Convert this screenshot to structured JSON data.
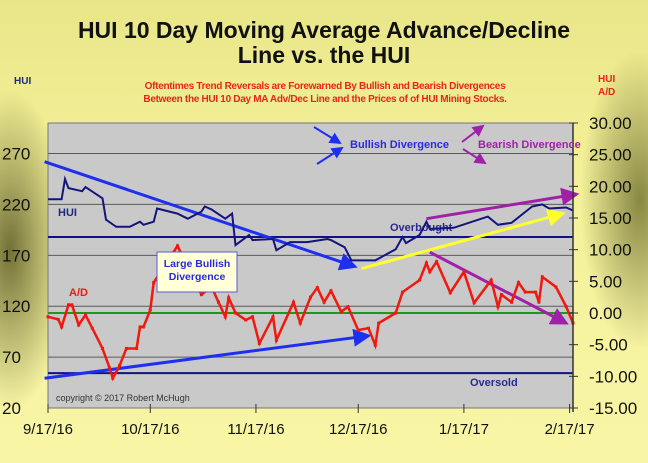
{
  "chart_data": {
    "type": "line",
    "title": "HUI 10 Day Moving Average Advance/Decline",
    "title_line2": "Line vs. the HUI",
    "subtitle": [
      "Oftentimes Trend Reversals are Forewarned By Bullish and Bearish Divergences",
      "Between the HUI 10 Day MA Adv/Dec Line and the Prices of of HUI Mining Stocks."
    ],
    "left_axis_label": "HUI",
    "right_axis_label": [
      "HUI",
      "A/D"
    ],
    "left_ylim": [
      20,
      300
    ],
    "left_ticks": [
      "270",
      "220",
      "170",
      "120",
      "70",
      "20"
    ],
    "left_tick_values": [
      270,
      220,
      170,
      120,
      70,
      20
    ],
    "right_ylim": [
      -15,
      30
    ],
    "right_ticks": [
      "30.00",
      "25.00",
      "20.00",
      "15.00",
      "10.00",
      "5.00",
      "0.00",
      "-5.00",
      "-10.00",
      "-15.00"
    ],
    "right_tick_values": [
      30,
      25,
      20,
      15,
      10,
      5,
      0,
      -5,
      -10,
      -15
    ],
    "xlim": [
      "2016-09-17",
      "2017-02-18"
    ],
    "x_ticks": [
      "9/17/16",
      "10/17/16",
      "11/17/16",
      "12/17/16",
      "1/17/17",
      "2/17/17"
    ],
    "x_tick_dates": [
      "2016-09-17",
      "2016-10-17",
      "2016-11-17",
      "2016-12-17",
      "2017-01-17",
      "2017-02-17"
    ],
    "grid": true,
    "colors": {
      "hui": "#14147a",
      "ad": "#f0180f",
      "zero": "#1a9a1a",
      "reference": "#10108a",
      "bullish": "#1f2ff0",
      "bearish": "#a020a8",
      "yellow": "#ffff30",
      "plot_bg": "#c9c9c9"
    },
    "series": [
      {
        "name": "HUI",
        "axis": "left",
        "label": "HUI",
        "points": [
          [
            "2016-09-17",
            225
          ],
          [
            "2016-09-21",
            225
          ],
          [
            "2016-09-22",
            245
          ],
          [
            "2016-09-23",
            236
          ],
          [
            "2016-09-27",
            233
          ],
          [
            "2016-09-28",
            237
          ],
          [
            "2016-10-03",
            226
          ],
          [
            "2016-10-04",
            205
          ],
          [
            "2016-10-07",
            198
          ],
          [
            "2016-10-11",
            198
          ],
          [
            "2016-10-14",
            203
          ],
          [
            "2016-10-15",
            200
          ],
          [
            "2016-10-18",
            203
          ],
          [
            "2016-10-19",
            216
          ],
          [
            "2016-10-25",
            211
          ],
          [
            "2016-10-28",
            206
          ],
          [
            "2016-11-01",
            213
          ],
          [
            "2016-11-02",
            218
          ],
          [
            "2016-11-04",
            215
          ],
          [
            "2016-11-08",
            206
          ],
          [
            "2016-11-10",
            211
          ],
          [
            "2016-11-11",
            180
          ],
          [
            "2016-11-15",
            190
          ],
          [
            "2016-11-16",
            185
          ],
          [
            "2016-11-22",
            186
          ],
          [
            "2016-11-23",
            175
          ],
          [
            "2016-11-27",
            183
          ],
          [
            "2016-12-02",
            183
          ],
          [
            "2016-12-08",
            186
          ],
          [
            "2016-12-09",
            185
          ],
          [
            "2016-12-13",
            178
          ],
          [
            "2016-12-15",
            165
          ],
          [
            "2016-12-22",
            165
          ],
          [
            "2016-12-28",
            176
          ],
          [
            "2016-12-30",
            188
          ],
          [
            "2016-12-31",
            182
          ],
          [
            "2017-01-04",
            190
          ],
          [
            "2017-01-06",
            203
          ],
          [
            "2017-01-07",
            196
          ],
          [
            "2017-01-14",
            197
          ],
          [
            "2017-01-24",
            208
          ],
          [
            "2017-01-27",
            200
          ],
          [
            "2017-01-31",
            202
          ],
          [
            "2017-02-06",
            218
          ],
          [
            "2017-02-09",
            220
          ],
          [
            "2017-02-11",
            216
          ],
          [
            "2017-02-16",
            217
          ],
          [
            "2017-02-18",
            214
          ]
        ]
      },
      {
        "name": "A/D",
        "axis": "right",
        "label": "A/D",
        "points": [
          [
            "2016-09-17",
            -0.6
          ],
          [
            "2016-09-20",
            -1
          ],
          [
            "2016-09-21",
            -2.2
          ],
          [
            "2016-09-23",
            1.3
          ],
          [
            "2016-09-24",
            1.3
          ],
          [
            "2016-09-26",
            -1.9
          ],
          [
            "2016-09-28",
            -0.3
          ],
          [
            "2016-09-30",
            -2.4
          ],
          [
            "2016-10-03",
            -5.6
          ],
          [
            "2016-10-05",
            -8.6
          ],
          [
            "2016-10-06",
            -10.3
          ],
          [
            "2016-10-08",
            -8.3
          ],
          [
            "2016-10-10",
            -5.6
          ],
          [
            "2016-10-13",
            -5.6
          ],
          [
            "2016-10-14",
            -2.2
          ],
          [
            "2016-10-15",
            -2.2
          ],
          [
            "2016-10-17",
            0.5
          ],
          [
            "2016-10-18",
            4.8
          ],
          [
            "2016-10-25",
            10.6
          ],
          [
            "2016-11-01",
            2.9
          ],
          [
            "2016-11-04",
            4.1
          ],
          [
            "2016-11-06",
            1.7
          ],
          [
            "2016-11-08",
            -0.6
          ],
          [
            "2016-11-09",
            2.4
          ],
          [
            "2016-11-11",
            0
          ],
          [
            "2016-11-14",
            -1.1
          ],
          [
            "2016-11-16",
            -0.6
          ],
          [
            "2016-11-18",
            -4.8
          ],
          [
            "2016-11-22",
            -0.6
          ],
          [
            "2016-11-23",
            -4.3
          ],
          [
            "2016-11-28",
            1.7
          ],
          [
            "2016-11-30",
            -1.6
          ],
          [
            "2016-12-03",
            2.5
          ],
          [
            "2016-12-05",
            4
          ],
          [
            "2016-12-07",
            1.7
          ],
          [
            "2016-12-09",
            3.5
          ],
          [
            "2016-12-12",
            0.2
          ],
          [
            "2016-12-14",
            1
          ],
          [
            "2016-12-17",
            -2.7
          ],
          [
            "2016-12-20",
            -2.4
          ],
          [
            "2016-12-22",
            -5.1
          ],
          [
            "2016-12-23",
            -1.6
          ],
          [
            "2016-12-28",
            0
          ],
          [
            "2016-12-30",
            3.3
          ],
          [
            "2017-01-04",
            5.2
          ],
          [
            "2017-01-06",
            7.9
          ],
          [
            "2017-01-07",
            6.5
          ],
          [
            "2017-01-09",
            8.1
          ],
          [
            "2017-01-13",
            3.2
          ],
          [
            "2017-01-17",
            6.5
          ],
          [
            "2017-01-20",
            1.6
          ],
          [
            "2017-01-25",
            5.2
          ],
          [
            "2017-01-27",
            1
          ],
          [
            "2017-01-28",
            2.9
          ],
          [
            "2017-01-31",
            1.7
          ],
          [
            "2017-02-02",
            4.8
          ],
          [
            "2017-02-04",
            3.3
          ],
          [
            "2017-02-07",
            3.3
          ],
          [
            "2017-02-08",
            1.7
          ],
          [
            "2017-02-09",
            5.7
          ],
          [
            "2017-02-13",
            4.1
          ],
          [
            "2017-02-16",
            1
          ],
          [
            "2017-02-18",
            -1.6
          ]
        ]
      }
    ],
    "reference_lines": [
      {
        "label": "Overbought",
        "axis": "right",
        "value": 12
      },
      {
        "label": "Oversold",
        "axis": "right",
        "value": -9.5
      },
      {
        "label": "",
        "axis": "right",
        "value": 0
      }
    ],
    "trendlines": [
      {
        "type": "bullish",
        "axis": "left",
        "from": [
          "2016-09-16",
          262
        ],
        "to": [
          "2016-12-16",
          159
        ]
      },
      {
        "type": "bullish",
        "axis": "right",
        "from": [
          "2016-09-16",
          -10.3
        ],
        "to": [
          "2016-12-20",
          -3.6
        ]
      },
      {
        "type": "yellow",
        "axis": "left",
        "from": [
          "2016-12-18",
          157
        ],
        "to": [
          "2017-02-15",
          211
        ]
      },
      {
        "type": "bearish",
        "axis": "left",
        "from": [
          "2017-01-06",
          206
        ],
        "to": [
          "2017-02-19",
          230
        ]
      },
      {
        "type": "bearish",
        "axis": "right",
        "from": [
          "2017-01-07",
          9.6
        ],
        "to": [
          "2017-02-16",
          -1.6
        ]
      }
    ],
    "annotations": {
      "legend_bullish": "Bullish Divergence",
      "legend_bearish": "Bearish Divergence",
      "large_bullish": [
        "Large Bullish",
        "Divergence"
      ],
      "copyright": "copyright © 2017 Robert McHugh"
    }
  }
}
